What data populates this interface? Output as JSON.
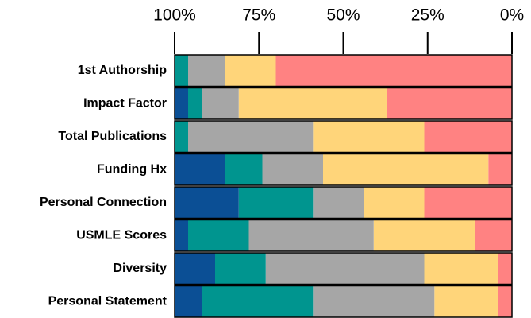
{
  "chart_data": {
    "type": "stacked_barh",
    "categories": [
      "1st Authorship",
      "Impact Factor",
      "Total Publications",
      "Funding Hx",
      "Personal Connection",
      "USMLE Scores",
      "Diversity",
      "Personal Statement"
    ],
    "series": [
      {
        "color": "#0b4f95",
        "values": [
          0,
          4,
          0,
          15,
          19,
          4,
          12,
          8
        ]
      },
      {
        "color": "#00958f",
        "values": [
          4,
          4,
          4,
          11,
          22,
          18,
          15,
          33
        ]
      },
      {
        "color": "#a6a6a6",
        "values": [
          11,
          11,
          37,
          18,
          15,
          37,
          47,
          36
        ]
      },
      {
        "color": "#ffd57a",
        "values": [
          15,
          44,
          33,
          49,
          18,
          30,
          22,
          19
        ]
      },
      {
        "color": "#ff8282",
        "values": [
          70,
          37,
          26,
          7,
          26,
          11,
          4,
          4
        ]
      }
    ],
    "xlim": [
      100,
      0
    ],
    "xticks": [
      {
        "value": 100,
        "label": "100%"
      },
      {
        "value": 75,
        "label": "75%"
      },
      {
        "value": 50,
        "label": "50%"
      },
      {
        "value": 25,
        "label": "25%"
      },
      {
        "value": 0,
        "label": "0%"
      }
    ]
  }
}
